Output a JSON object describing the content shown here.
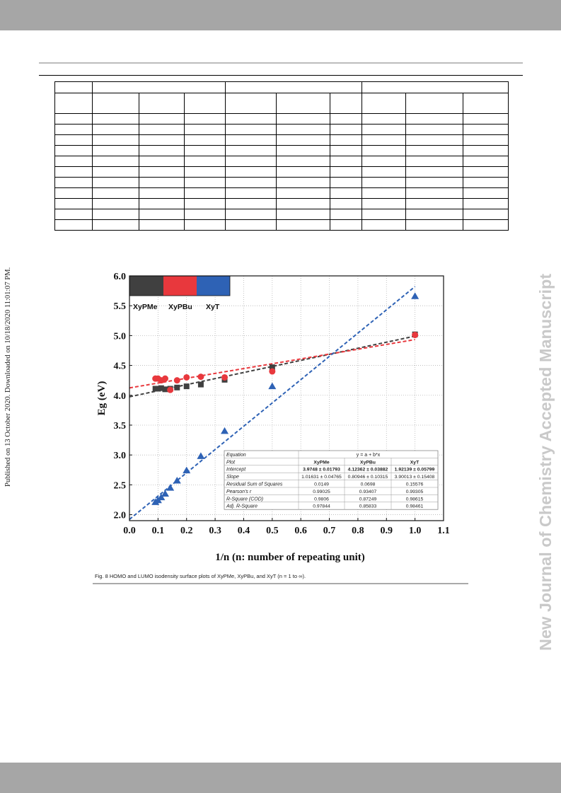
{
  "side_journal": "New Journal of Chemistry Accepted Manuscript",
  "published_note": "Published on 13 October 2020. Downloaded on 10/18/2020 11:01:07 PM.",
  "caption": "Fig. 8 HOMO and LUMO isodensity surface plots of XyPMe, XyPBu, and XyT (n = 1 to ∞).",
  "chart_data": {
    "type": "scatter",
    "xlabel": "1/n (n: number of repeating unit)",
    "ylabel": "Eg (eV)",
    "xlim": [
      0.0,
      1.1
    ],
    "ylim": [
      1.9,
      6.0
    ],
    "xticks": [
      "0.0",
      "0.1",
      "0.2",
      "0.3",
      "0.4",
      "0.5",
      "0.6",
      "0.7",
      "0.8",
      "0.9",
      "1.0",
      "1.1"
    ],
    "yticks": [
      "2.0",
      "2.5",
      "3.0",
      "3.5",
      "4.0",
      "4.5",
      "5.0",
      "5.5",
      "6.0"
    ],
    "grid": true,
    "legend": [
      "XyPMe",
      "XyPBu",
      "XyT"
    ],
    "series": [
      {
        "name": "XyPMe",
        "marker": "square",
        "color": "#404040",
        "x": [
          0.0909,
          0.1,
          0.1111,
          0.125,
          0.1429,
          0.1667,
          0.2,
          0.25,
          0.3333,
          0.5,
          1.0
        ],
        "y": [
          4.11,
          4.11,
          4.12,
          4.1,
          4.11,
          4.13,
          4.15,
          4.18,
          4.26,
          4.47,
          5.02
        ],
        "fit": {
          "a": 3.9748,
          "b": 1.01631
        }
      },
      {
        "name": "XyPBu",
        "marker": "circle",
        "color": "#e8383d",
        "x": [
          0.0909,
          0.1,
          0.1111,
          0.125,
          0.1429,
          0.1667,
          0.2,
          0.25,
          0.3333,
          0.5,
          1.0
        ],
        "y": [
          4.28,
          4.28,
          4.25,
          4.28,
          4.09,
          4.25,
          4.3,
          4.31,
          4.3,
          4.4,
          5.01
        ],
        "fit": {
          "a": 4.12362,
          "b": 0.80946
        }
      },
      {
        "name": "XyT",
        "marker": "triangle",
        "color": "#2e62b5",
        "x": [
          0.0909,
          0.1,
          0.1111,
          0.125,
          0.1429,
          0.1667,
          0.2,
          0.25,
          0.3333,
          0.5,
          1.0
        ],
        "y": [
          2.21,
          2.24,
          2.29,
          2.35,
          2.45,
          2.57,
          2.74,
          2.98,
          3.4,
          4.15,
          5.66
        ],
        "fit": {
          "a": 1.92139,
          "b": 3.90013
        }
      }
    ],
    "stats_table": {
      "header_row": [
        "Equation",
        "y = a + b*x"
      ],
      "rows": [
        {
          "label": "Plot",
          "values": [
            "XyPMe",
            "XyPBu",
            "XyT"
          ],
          "bold": true
        },
        {
          "label": "Intercept",
          "values": [
            "3.9748 ± 0.01793",
            "4.12362 ± 0.03882",
            "1.92139 ± 0.05799"
          ],
          "bold": true
        },
        {
          "label": "Slope",
          "values": [
            "1.01631 ± 0.04765",
            "0.80946 ± 0.10315",
            "3.90013 ± 0.15408"
          ],
          "bold": false
        },
        {
          "label": "Residual Sum of Squares",
          "values": [
            "0.0149",
            "0.0698",
            "0.15576"
          ],
          "bold": false
        },
        {
          "label": "Pearson's r",
          "values": [
            "0.99025",
            "0.93407",
            "0.99305"
          ],
          "bold": false
        },
        {
          "label": "R-Square (COD)",
          "values": [
            "0.9806",
            "0.87249",
            "0.98615"
          ],
          "bold": false
        },
        {
          "label": "Adj. R-Square",
          "values": [
            "0.97844",
            "0.85833",
            "0.98461"
          ],
          "bold": false
        }
      ]
    }
  }
}
